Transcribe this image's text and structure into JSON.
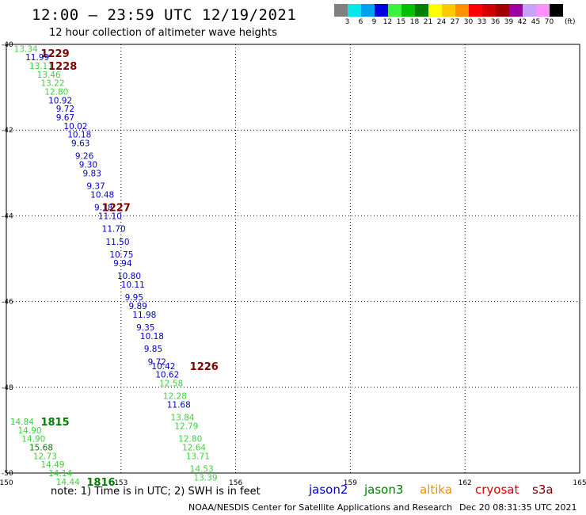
{
  "title": "12:00 – 23:59 UTC 12/19/2021",
  "subtitle": "12 hour collection of altimeter wave heights",
  "legend": {
    "unit": "(ft)",
    "ticks": [
      "3",
      "6",
      "9",
      "12",
      "15",
      "18",
      "21",
      "24",
      "27",
      "30",
      "33",
      "36",
      "39",
      "42",
      "45",
      "70"
    ],
    "colors": [
      "#808080",
      "#00e8e8",
      "#00a0f0",
      "#0000e0",
      "#40f040",
      "#00c000",
      "#008000",
      "#ffff00",
      "#ffc800",
      "#ff9000",
      "#ff0000",
      "#d00000",
      "#a00000",
      "#a000a0",
      "#c8a0ff",
      "#ff90ff",
      "#000000"
    ]
  },
  "map": {
    "lon_ticks": [
      "150",
      "153",
      "156",
      "159",
      "162",
      "165"
    ],
    "lat_ticks": [
      "-40",
      "-42",
      "-44",
      "-46",
      "-48",
      "-50"
    ],
    "lon_range": [
      150,
      165
    ],
    "lat_range": [
      -40,
      -50
    ],
    "satellite_colors": {
      "jason2": "#0000c8",
      "jason3": "#008000",
      "altika": "#ff8c00",
      "cryosat": "#e00000",
      "s3a": "#800000",
      "light_green": "#40d040",
      "dark_blue": "#00008b"
    },
    "observations": [
      {
        "lon": 150.2,
        "lat": -40.1,
        "label": "13.34",
        "color": "#40d040"
      },
      {
        "lon": 150.5,
        "lat": -40.3,
        "label": "11.99",
        "color": "#0000c8"
      },
      {
        "lon": 150.6,
        "lat": -40.5,
        "label": "13.11",
        "color": "#40d040"
      },
      {
        "lon": 150.8,
        "lat": -40.7,
        "label": "13.46",
        "color": "#40d040"
      },
      {
        "lon": 150.9,
        "lat": -40.9,
        "label": "13.22",
        "color": "#40d040"
      },
      {
        "lon": 151.0,
        "lat": -41.1,
        "label": "12.80",
        "color": "#40d040"
      },
      {
        "lon": 151.1,
        "lat": -41.3,
        "label": "10.92",
        "color": "#0000c8"
      },
      {
        "lon": 151.3,
        "lat": -41.5,
        "label": "9.72",
        "color": "#0000c8"
      },
      {
        "lon": 151.3,
        "lat": -41.7,
        "label": "9.67",
        "color": "#0000c8"
      },
      {
        "lon": 151.5,
        "lat": -41.9,
        "label": "10.02",
        "color": "#0000c8"
      },
      {
        "lon": 151.6,
        "lat": -42.1,
        "label": "10.18",
        "color": "#0000c8"
      },
      {
        "lon": 151.7,
        "lat": -42.3,
        "label": "9.63",
        "color": "#0000c8"
      },
      {
        "lon": 151.8,
        "lat": -42.6,
        "label": "9.26",
        "color": "#0000c8"
      },
      {
        "lon": 151.9,
        "lat": -42.8,
        "label": "9.30",
        "color": "#0000c8"
      },
      {
        "lon": 152.0,
        "lat": -43.0,
        "label": "9.83",
        "color": "#0000c8"
      },
      {
        "lon": 152.1,
        "lat": -43.3,
        "label": "9.37",
        "color": "#0000c8"
      },
      {
        "lon": 152.2,
        "lat": -43.5,
        "label": "10.48",
        "color": "#0000c8"
      },
      {
        "lon": 152.3,
        "lat": -43.8,
        "label": "9.18",
        "color": "#0000c8"
      },
      {
        "lon": 152.4,
        "lat": -44.0,
        "label": "11.10",
        "color": "#0000c8"
      },
      {
        "lon": 152.5,
        "lat": -44.3,
        "label": "11.70",
        "color": "#0000c8"
      },
      {
        "lon": 152.6,
        "lat": -44.6,
        "label": "11.50",
        "color": "#0000c8"
      },
      {
        "lon": 152.7,
        "lat": -44.9,
        "label": "10.75",
        "color": "#0000c8"
      },
      {
        "lon": 152.8,
        "lat": -45.1,
        "label": "9.94",
        "color": "#0000c8"
      },
      {
        "lon": 152.9,
        "lat": -45.4,
        "label": "10.80",
        "color": "#0000c8"
      },
      {
        "lon": 153.0,
        "lat": -45.6,
        "label": "10.11",
        "color": "#0000c8"
      },
      {
        "lon": 153.1,
        "lat": -45.9,
        "label": "9.95",
        "color": "#0000c8"
      },
      {
        "lon": 153.2,
        "lat": -46.1,
        "label": "9.89",
        "color": "#0000c8"
      },
      {
        "lon": 153.3,
        "lat": -46.3,
        "label": "11.98",
        "color": "#0000c8"
      },
      {
        "lon": 153.4,
        "lat": -46.6,
        "label": "9.35",
        "color": "#0000c8"
      },
      {
        "lon": 153.5,
        "lat": -46.8,
        "label": "10.18",
        "color": "#0000c8"
      },
      {
        "lon": 153.6,
        "lat": -47.1,
        "label": "9.85",
        "color": "#0000c8"
      },
      {
        "lon": 153.7,
        "lat": -47.4,
        "label": "9.72",
        "color": "#0000c8"
      },
      {
        "lon": 153.8,
        "lat": -47.5,
        "label": "10.42",
        "color": "#0000c8"
      },
      {
        "lon": 153.9,
        "lat": -47.7,
        "label": "10.62",
        "color": "#0000c8"
      },
      {
        "lon": 154.0,
        "lat": -47.9,
        "label": "12.58",
        "color": "#40d040"
      },
      {
        "lon": 154.1,
        "lat": -48.2,
        "label": "12.28",
        "color": "#40d040"
      },
      {
        "lon": 154.2,
        "lat": -48.4,
        "label": "11.68",
        "color": "#0000c8"
      },
      {
        "lon": 154.3,
        "lat": -48.7,
        "label": "13.84",
        "color": "#40d040"
      },
      {
        "lon": 154.4,
        "lat": -48.9,
        "label": "12.79",
        "color": "#40d040"
      },
      {
        "lon": 154.5,
        "lat": -49.2,
        "label": "12.80",
        "color": "#40d040"
      },
      {
        "lon": 154.6,
        "lat": -49.4,
        "label": "12.64",
        "color": "#40d040"
      },
      {
        "lon": 154.7,
        "lat": -49.6,
        "label": "13.71",
        "color": "#40d040"
      },
      {
        "lon": 154.8,
        "lat": -49.9,
        "label": "14.53",
        "color": "#40d040"
      },
      {
        "lon": 154.9,
        "lat": -50.1,
        "label": "13.39",
        "color": "#40d040"
      },
      {
        "lon": 150.1,
        "lat": -48.8,
        "label": "14.84",
        "color": "#40d040"
      },
      {
        "lon": 150.3,
        "lat": -49.0,
        "label": "14.90",
        "color": "#40d040"
      },
      {
        "lon": 150.4,
        "lat": -49.2,
        "label": "14.90",
        "color": "#40d040"
      },
      {
        "lon": 150.6,
        "lat": -49.4,
        "label": "15.68",
        "color": "#008000"
      },
      {
        "lon": 150.7,
        "lat": -49.6,
        "label": "12.73",
        "color": "#40d040"
      },
      {
        "lon": 150.9,
        "lat": -49.8,
        "label": "14.49",
        "color": "#40d040"
      },
      {
        "lon": 151.1,
        "lat": -50.0,
        "label": "14.14",
        "color": "#40d040"
      },
      {
        "lon": 151.3,
        "lat": -50.2,
        "label": "14.44",
        "color": "#40d040"
      }
    ],
    "time_labels": [
      {
        "lon": 150.9,
        "lat": -40.2,
        "label": "1229",
        "color": "#800000"
      },
      {
        "lon": 151.1,
        "lat": -40.5,
        "label": "1228",
        "color": "#800000"
      },
      {
        "lon": 152.5,
        "lat": -43.8,
        "label": "1227",
        "color": "#800000"
      },
      {
        "lon": 154.8,
        "lat": -47.5,
        "label": "1226",
        "color": "#800000"
      },
      {
        "lon": 150.9,
        "lat": -48.8,
        "label": "1815",
        "color": "#008000"
      },
      {
        "lon": 152.1,
        "lat": -50.2,
        "label": "1816",
        "color": "#008000"
      }
    ]
  },
  "note": "note:  1) Time is in UTC;  2) SWH is in feet",
  "sat_legend": [
    {
      "name": "jason2",
      "color": "#0000c8"
    },
    {
      "name": "jason3",
      "color": "#008000"
    },
    {
      "name": "altika",
      "color": "#ff8c00"
    },
    {
      "name": "cryosat",
      "color": "#e00000"
    },
    {
      "name": "s3a",
      "color": "#800000"
    }
  ],
  "credit": "NOAA/NESDIS Center for Satellite Applications and Research",
  "timestamp": "Dec 20 08:31:35 UTC 2021"
}
